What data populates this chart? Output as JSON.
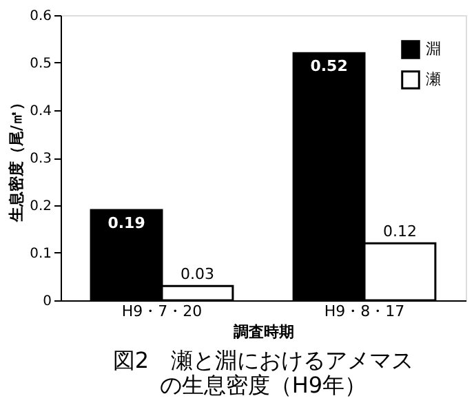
{
  "chart_data": {
    "type": "bar",
    "title": "図2　瀬と淵におけるアメマスの生息密度（H9年）",
    "xlabel": "調査時期",
    "ylabel": "生息密度（尾/㎡）",
    "categories": [
      "H9・7・20",
      "H9・8・17"
    ],
    "series": [
      {
        "name": "淵",
        "color": "#000000",
        "values": [
          0.19,
          0.52
        ]
      },
      {
        "name": "瀬",
        "color": "#ffffff",
        "values": [
          0.03,
          0.12
        ]
      }
    ],
    "ylim": [
      0,
      0.6
    ],
    "yticks": [
      0,
      0.1,
      0.2,
      0.3,
      0.4,
      0.5,
      0.6
    ],
    "grid": false,
    "legend": "top right",
    "data_labels": true
  }
}
